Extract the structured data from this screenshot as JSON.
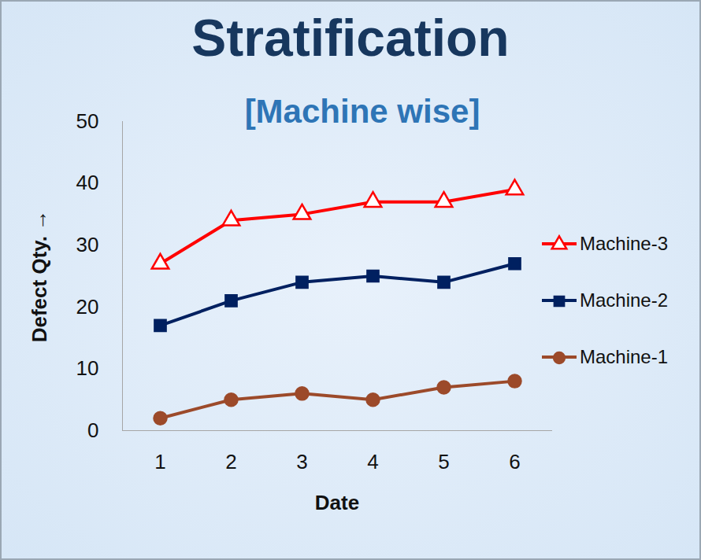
{
  "chart_data": {
    "type": "line",
    "title": "Stratification",
    "subtitle": "[Machine wise]",
    "x_label": "Date",
    "y_label": "Defect Qty.",
    "categories": [
      "1",
      "2",
      "3",
      "4",
      "5",
      "6"
    ],
    "series": [
      {
        "name": "Machine-3",
        "color": "#ff0000",
        "marker": "triangle",
        "values": [
          27,
          34,
          35,
          37,
          37,
          39
        ]
      },
      {
        "name": "Machine-2",
        "color": "#002060",
        "marker": "square",
        "values": [
          17,
          21,
          24,
          25,
          24,
          27
        ]
      },
      {
        "name": "Machine-1",
        "color": "#9c4a2a",
        "marker": "circle",
        "values": [
          2,
          5,
          6,
          5,
          7,
          8
        ]
      }
    ],
    "ylim": [
      0,
      50
    ],
    "yticks": [
      0,
      10,
      20,
      30,
      40,
      50
    ],
    "grid": false,
    "legend": "right"
  }
}
